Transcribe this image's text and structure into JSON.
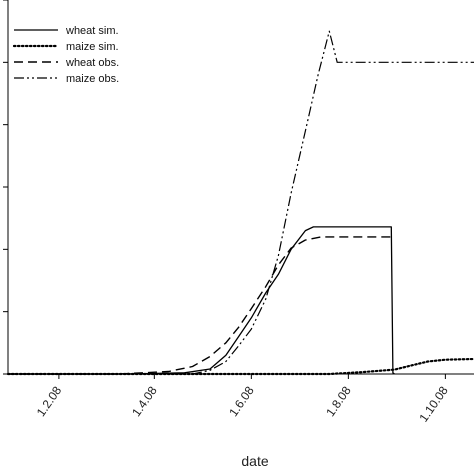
{
  "chart_data": {
    "type": "line",
    "title": "",
    "xlabel": "date",
    "ylabel": "",
    "x_axis": {
      "type": "date",
      "year": 2008,
      "ticks": [
        {
          "label": "1.2.08",
          "date": "2008-02-01"
        },
        {
          "label": "1.4.08",
          "date": "2008-04-01"
        },
        {
          "label": "1.6.08",
          "date": "2008-06-01"
        },
        {
          "label": "1.8.08",
          "date": "2008-08-01"
        },
        {
          "label": "1.10.08",
          "date": "2008-10-01"
        }
      ],
      "range": [
        "2007-12-31",
        "2008-10-19"
      ]
    },
    "y_axis": {
      "tick_labels_visible": false,
      "ticks": [
        0,
        1,
        2,
        3,
        4,
        5,
        6
      ],
      "range": [
        0,
        6
      ]
    },
    "grid": false,
    "legend_position": "top-left",
    "series": [
      {
        "name": "wheat sim.",
        "style": "solid",
        "color": "#000000",
        "points": [
          [
            "2007-12-31",
            0
          ],
          [
            "2008-03-15",
            0
          ],
          [
            "2008-04-20",
            0.02
          ],
          [
            "2008-05-06",
            0.08
          ],
          [
            "2008-05-16",
            0.3
          ],
          [
            "2008-05-24",
            0.6
          ],
          [
            "2008-06-01",
            0.9
          ],
          [
            "2008-06-10",
            1.3
          ],
          [
            "2008-06-18",
            1.6
          ],
          [
            "2008-06-26",
            2.0
          ],
          [
            "2008-07-05",
            2.3
          ],
          [
            "2008-07-10",
            2.36
          ],
          [
            "2008-07-20",
            2.36
          ],
          [
            "2008-08-20",
            2.36
          ],
          [
            "2008-08-28",
            2.36
          ],
          [
            "2008-08-29",
            0.02
          ],
          [
            "2008-08-30",
            0.0
          ]
        ]
      },
      {
        "name": "maize sim.",
        "style": "dotted",
        "color": "#000000",
        "points": [
          [
            "2007-12-31",
            0
          ],
          [
            "2008-07-20",
            0
          ],
          [
            "2008-08-10",
            0.03
          ],
          [
            "2008-08-30",
            0.07
          ],
          [
            "2008-09-10",
            0.14
          ],
          [
            "2008-09-20",
            0.2
          ],
          [
            "2008-10-01",
            0.23
          ],
          [
            "2008-10-19",
            0.24
          ]
        ]
      },
      {
        "name": "wheat obs.",
        "style": "dashed",
        "color": "#000000",
        "points": [
          [
            "2007-12-31",
            0
          ],
          [
            "2008-03-10",
            0
          ],
          [
            "2008-04-10",
            0.04
          ],
          [
            "2008-04-25",
            0.12
          ],
          [
            "2008-05-06",
            0.28
          ],
          [
            "2008-05-16",
            0.5
          ],
          [
            "2008-05-24",
            0.75
          ],
          [
            "2008-06-01",
            1.05
          ],
          [
            "2008-06-10",
            1.4
          ],
          [
            "2008-06-18",
            1.75
          ],
          [
            "2008-06-26",
            2.02
          ],
          [
            "2008-07-05",
            2.15
          ],
          [
            "2008-07-15",
            2.2
          ],
          [
            "2008-07-25",
            2.2
          ],
          [
            "2008-08-28",
            2.2
          ]
        ]
      },
      {
        "name": "maize obs.",
        "style": "dash-dot-dot",
        "color": "#000000",
        "points": [
          [
            "2007-12-31",
            0
          ],
          [
            "2008-04-25",
            0
          ],
          [
            "2008-05-06",
            0.06
          ],
          [
            "2008-05-16",
            0.2
          ],
          [
            "2008-05-24",
            0.45
          ],
          [
            "2008-06-01",
            0.72
          ],
          [
            "2008-06-10",
            1.2
          ],
          [
            "2008-06-18",
            1.9
          ],
          [
            "2008-06-26",
            2.9
          ],
          [
            "2008-07-05",
            3.9
          ],
          [
            "2008-07-13",
            4.8
          ],
          [
            "2008-07-20",
            5.5
          ],
          [
            "2008-07-25",
            5.0
          ],
          [
            "2008-07-27",
            5.0
          ],
          [
            "2008-08-01",
            5.0
          ],
          [
            "2008-10-19",
            5.0
          ]
        ]
      }
    ]
  }
}
